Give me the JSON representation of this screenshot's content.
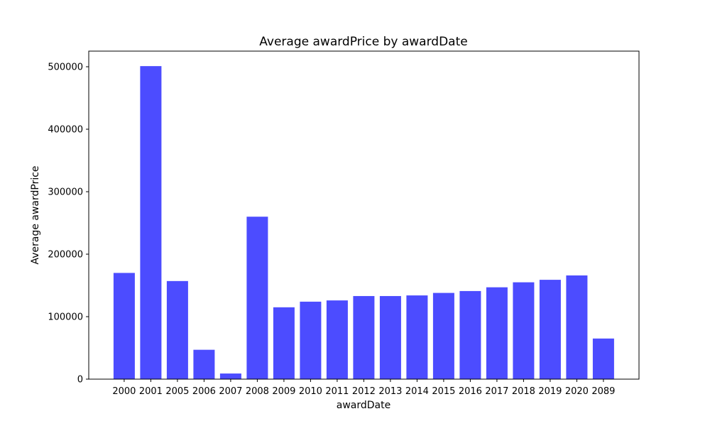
{
  "chart_data": {
    "type": "bar",
    "title": "Average awardPrice by awardDate",
    "xlabel": "awardDate",
    "ylabel": "Average awardPrice",
    "categories": [
      "2000",
      "2001",
      "2005",
      "2006",
      "2007",
      "2008",
      "2009",
      "2010",
      "2011",
      "2012",
      "2013",
      "2014",
      "2015",
      "2016",
      "2017",
      "2018",
      "2019",
      "2020",
      "2089"
    ],
    "values": [
      170000,
      501000,
      157000,
      47000,
      9000,
      260000,
      115000,
      124000,
      126000,
      133000,
      133000,
      134000,
      138000,
      141000,
      147000,
      155000,
      159000,
      166000,
      65000
    ],
    "ylim": [
      0,
      525000
    ],
    "yticks": [
      {
        "value": 0,
        "label": "0"
      },
      {
        "value": 100000,
        "label": "100000"
      },
      {
        "value": 200000,
        "label": "200000"
      },
      {
        "value": 300000,
        "label": "300000"
      },
      {
        "value": 400000,
        "label": "400000"
      },
      {
        "value": 500000,
        "label": "500000"
      }
    ],
    "bar_color": "#4c4cff",
    "grid": false,
    "legend": false
  }
}
